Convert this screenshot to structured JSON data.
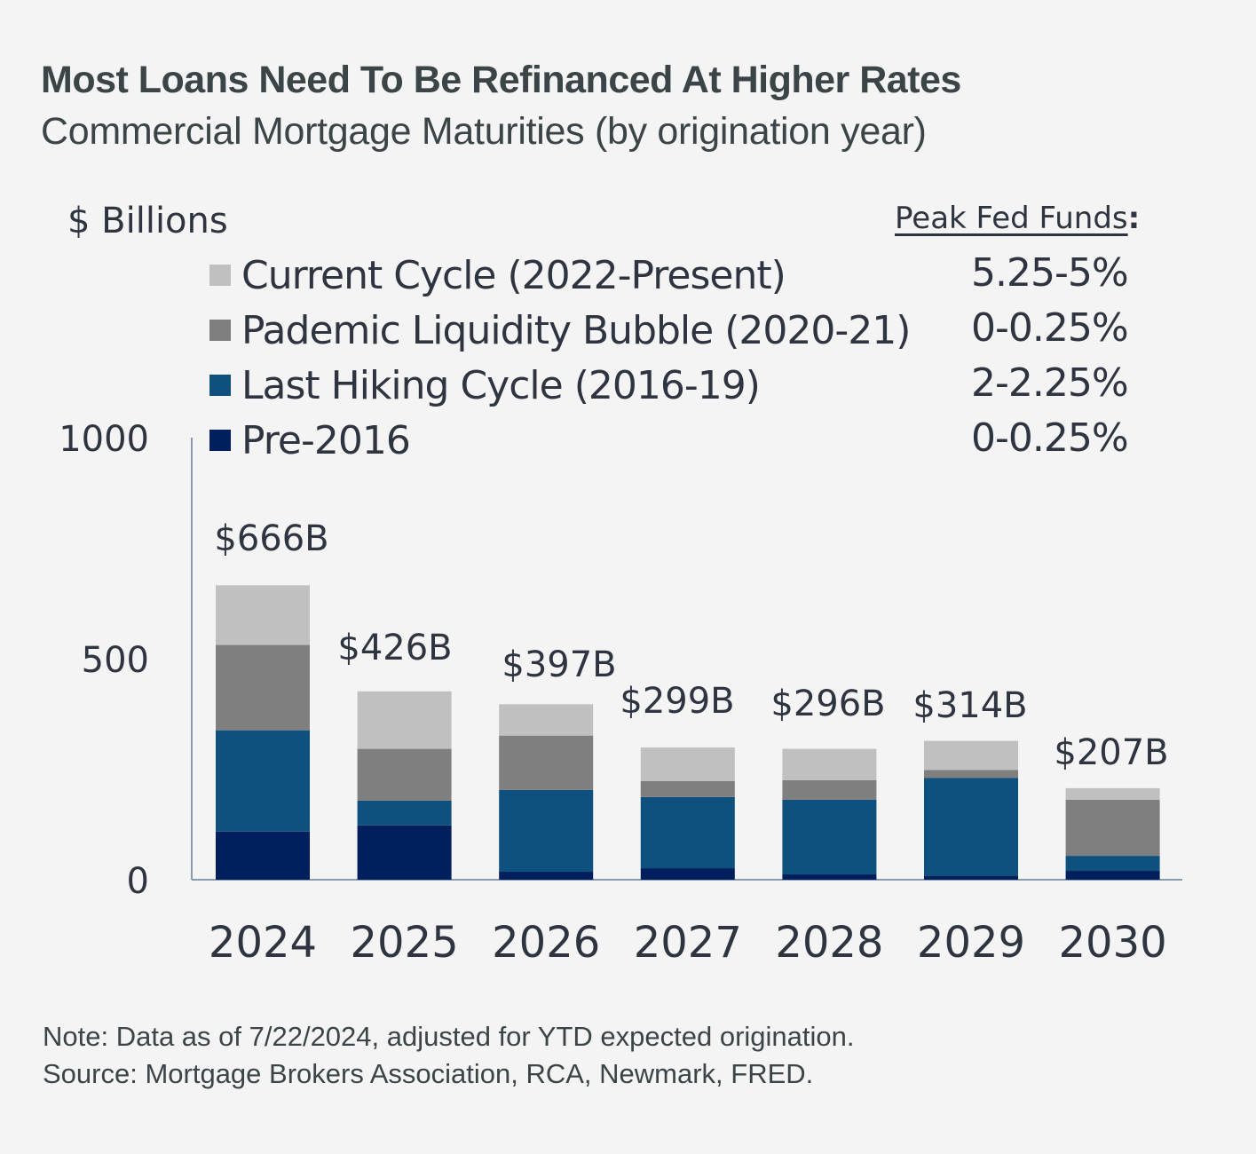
{
  "header": {
    "title": "Most Loans Need To Be Refinanced At Higher Rates",
    "subtitle": "Commercial Mortgage Maturities (by origination year)"
  },
  "peak_fed_funds_label": "Peak Fed Funds",
  "peak_fed_funds_colon": ":",
  "footer": {
    "note": "Note: Data as of 7/22/2024, adjusted for YTD expected origination.",
    "source": "Source: Mortgage Brokers Association, RCA, Newmark, FRED."
  },
  "chart_data": {
    "type": "bar",
    "stacked": true,
    "title": "Most Loans Need To Be Refinanced At Higher Rates",
    "subtitle": "Commercial Mortgage Maturities (by origination year)",
    "xlabel": "",
    "ylabel": "$ Billions",
    "ylim": [
      0,
      1000
    ],
    "yticks": [
      0,
      500,
      1000
    ],
    "ytick_labels": [
      "0",
      "500",
      "1000"
    ],
    "grid": false,
    "legend_position": "top",
    "categories": [
      "2024",
      "2025",
      "2026",
      "2027",
      "2028",
      "2029",
      "2030"
    ],
    "totals": [
      666,
      426,
      397,
      299,
      296,
      314,
      207
    ],
    "total_labels": [
      "$666B",
      "$426B",
      "$397B",
      "$299B",
      "$296B",
      "$314B",
      "$207B"
    ],
    "series": [
      {
        "name": "Pre-2016",
        "color": "#001f5c",
        "peak_fed_funds": "0-0.25%",
        "values": [
          109,
          123,
          18,
          26,
          12,
          8,
          20
        ]
      },
      {
        "name": "Last Hiking Cycle (2016-19)",
        "color": "#0e507e",
        "peak_fed_funds": "2-2.25%",
        "values": [
          229,
          56,
          185,
          161,
          169,
          222,
          34
        ]
      },
      {
        "name": "Pademic Liquidity Bubble (2020-21)",
        "color": "#7f7f7f",
        "peak_fed_funds": "0-0.25%",
        "values": [
          193,
          117,
          123,
          36,
          44,
          18,
          127
        ]
      },
      {
        "name": "Current Cycle (2022-Present)",
        "color": "#c0c0c0",
        "peak_fed_funds": "5.25-5%",
        "values": [
          135,
          130,
          71,
          76,
          71,
          66,
          26
        ]
      }
    ],
    "legend_order": [
      3,
      2,
      1,
      0
    ]
  }
}
